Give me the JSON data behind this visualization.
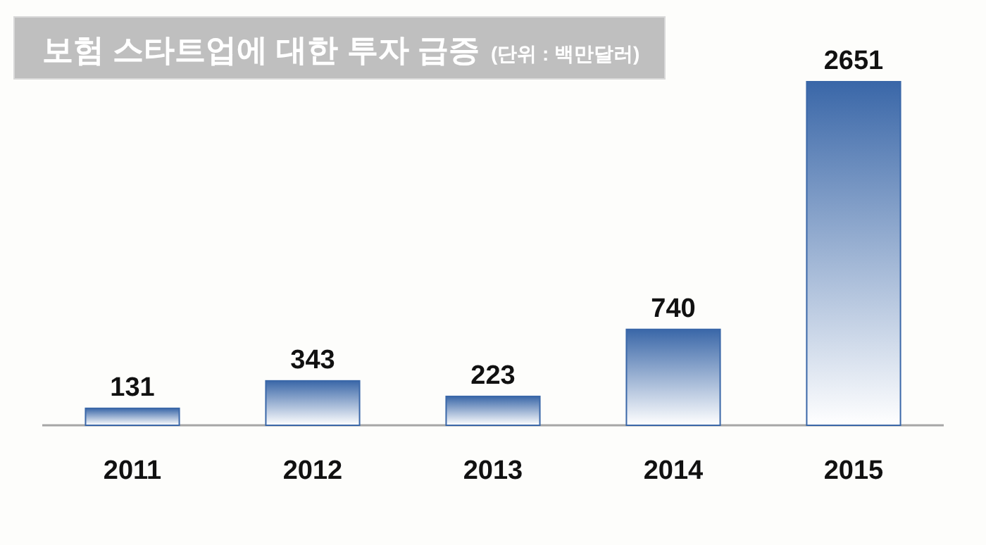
{
  "chart_data": {
    "type": "bar",
    "title": "보험 스타트업에 대한 투자 급증",
    "subtitle": "(단위 : 백만달러)",
    "categories": [
      "2011",
      "2012",
      "2013",
      "2014",
      "2015"
    ],
    "values": [
      131,
      343,
      223,
      740,
      2651
    ],
    "color": "#3a67a8",
    "data_labels": true
  }
}
